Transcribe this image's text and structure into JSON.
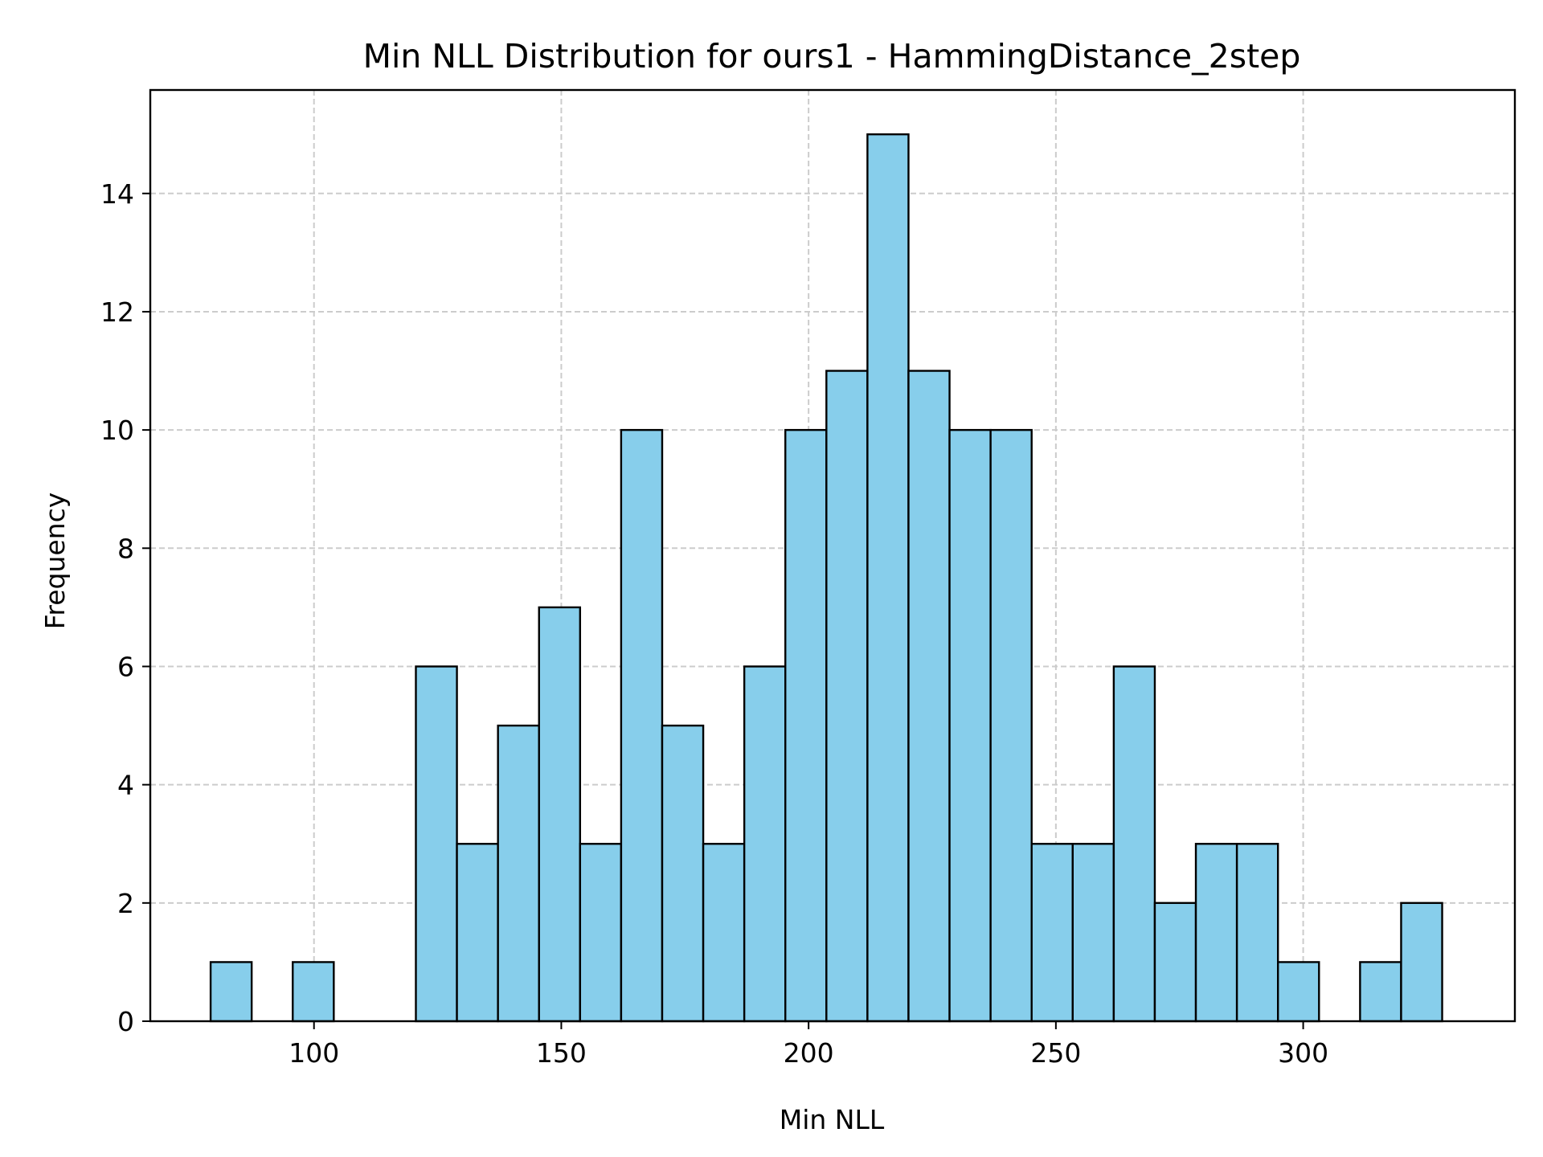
{
  "chart_data": {
    "type": "bar",
    "title": "Min NLL Distribution for ours1 - HammingDistance_2step",
    "xlabel": "Min NLL",
    "ylabel": "Frequency",
    "xlim": [
      66.9,
      342.8
    ],
    "ylim": [
      0,
      15.75
    ],
    "xticks": [
      100,
      150,
      200,
      250,
      300
    ],
    "yticks": [
      0,
      2,
      4,
      6,
      8,
      10,
      12,
      14
    ],
    "grid": true,
    "bar_color": "#87CEEB",
    "edge_color": "#000000",
    "bin_edges": [
      79.1,
      87.4,
      95.7,
      104.0,
      112.3,
      120.6,
      128.9,
      137.2,
      145.5,
      153.8,
      162.1,
      170.4,
      178.7,
      187.0,
      195.3,
      203.6,
      211.9,
      220.2,
      228.5,
      236.8,
      245.1,
      253.4,
      261.7,
      270.0,
      278.3,
      286.6,
      294.9,
      303.2,
      311.5,
      319.8,
      328.1
    ],
    "values": [
      1,
      0,
      1,
      0,
      0,
      6,
      3,
      5,
      7,
      3,
      10,
      5,
      3,
      6,
      10,
      11,
      15,
      11,
      10,
      10,
      3,
      3,
      6,
      2,
      3,
      3,
      1,
      0,
      1,
      2
    ]
  }
}
